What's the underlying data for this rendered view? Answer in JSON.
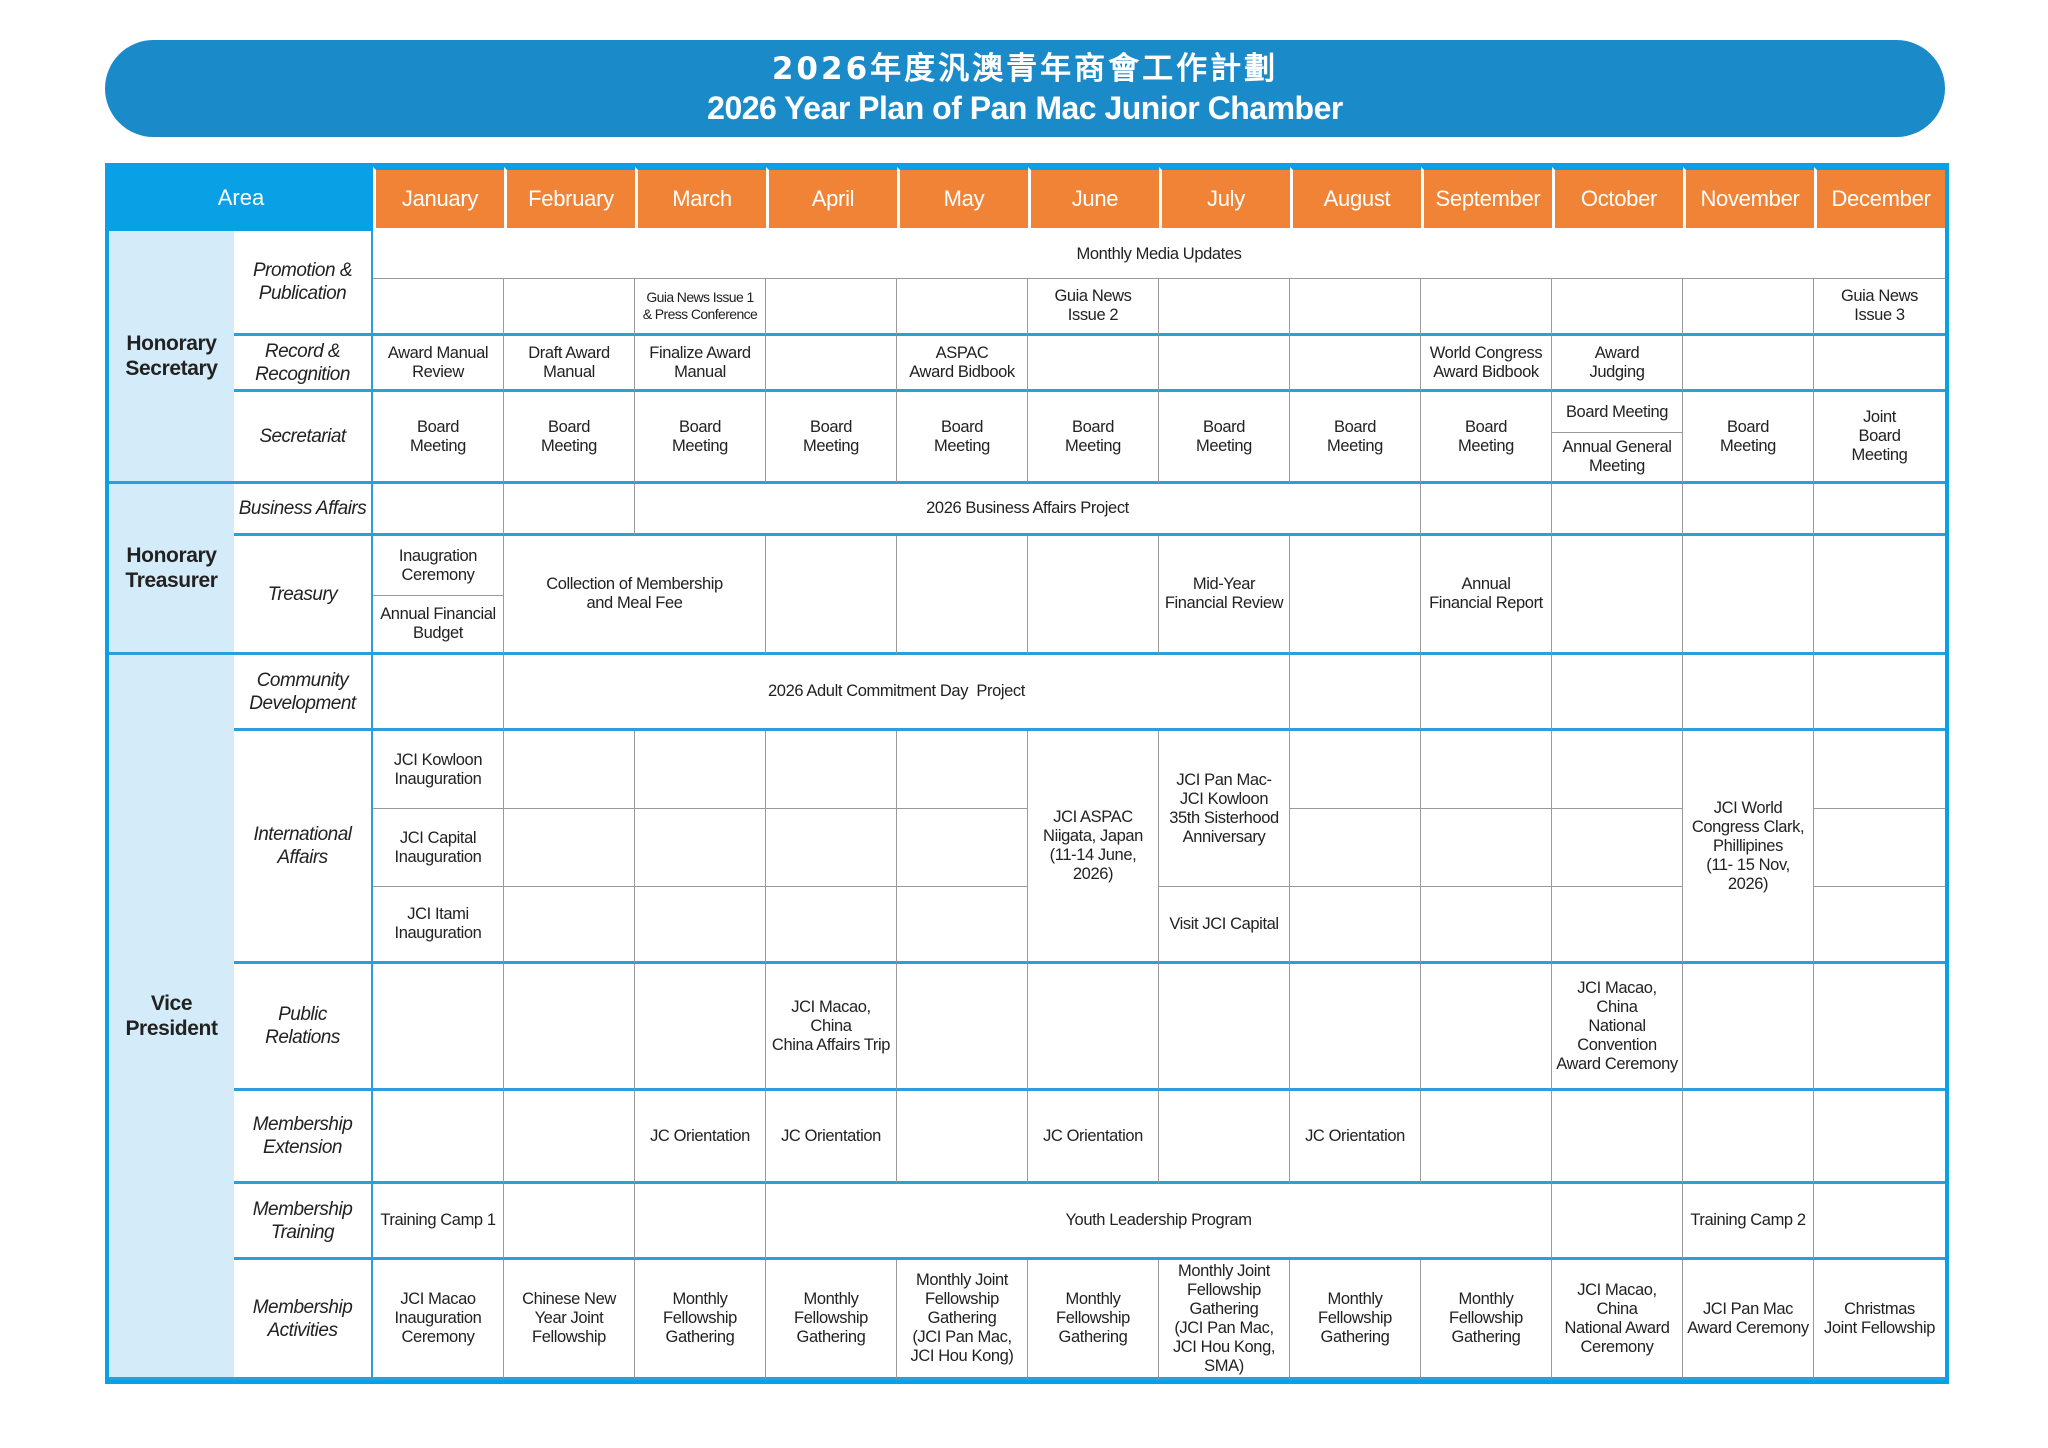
{
  "title": {
    "chinese": "2026年度汎澳青年商會工作計劃",
    "english": "2026 Year Plan of Pan Mac Junior Chamber"
  },
  "colors": {
    "banner": "#1a8ac8",
    "header_blue": "#0aa0e6",
    "month_orange": "#f08336",
    "area_bg": "#d4ecf9"
  },
  "header": {
    "area_label": "Area",
    "months": [
      "January",
      "February",
      "March",
      "April",
      "May",
      "June",
      "July",
      "August",
      "September",
      "October",
      "November",
      "December"
    ]
  },
  "sections": [
    {
      "name": "Honorary\nSecretary",
      "areas": [
        {
          "name": "Promotion &\nPublication",
          "events": [
            {
              "text": "Monthly Media Updates",
              "from": "January",
              "to": "December"
            },
            {
              "text": "Guia News Issue 1\n& Press Conference",
              "from": "March"
            },
            {
              "text": "Guia News\nIssue 2",
              "from": "June"
            },
            {
              "text": "Guia News\nIssue 3",
              "from": "December"
            }
          ]
        },
        {
          "name": "Record &\nRecognition",
          "events": [
            {
              "text": "Award Manual\nReview",
              "from": "January"
            },
            {
              "text": "Draft Award\nManual",
              "from": "February"
            },
            {
              "text": "Finalize Award\nManual",
              "from": "March"
            },
            {
              "text": "ASPAC\nAward Bidbook",
              "from": "May"
            },
            {
              "text": "World Congress\nAward Bidbook",
              "from": "September"
            },
            {
              "text": "Award\nJudging",
              "from": "October"
            }
          ]
        },
        {
          "name": "Secretariat",
          "events": [
            {
              "text": "Board\nMeeting",
              "from": "January"
            },
            {
              "text": "Board\nMeeting",
              "from": "February"
            },
            {
              "text": "Board\nMeeting",
              "from": "March"
            },
            {
              "text": "Board\nMeeting",
              "from": "April"
            },
            {
              "text": "Board\nMeeting",
              "from": "May"
            },
            {
              "text": "Board\nMeeting",
              "from": "June"
            },
            {
              "text": "Board\nMeeting",
              "from": "July"
            },
            {
              "text": "Board\nMeeting",
              "from": "August"
            },
            {
              "text": "Board\nMeeting",
              "from": "September"
            },
            {
              "text": "Board Meeting",
              "from": "October"
            },
            {
              "text": "Annual General\nMeeting",
              "from": "October"
            },
            {
              "text": "Board\nMeeting",
              "from": "November"
            },
            {
              "text": "Joint\nBoard\nMeeting",
              "from": "December"
            }
          ]
        }
      ]
    },
    {
      "name": "Honorary\nTreasurer",
      "areas": [
        {
          "name": "Business Affairs",
          "events": [
            {
              "text": "2026 Business Affairs Project",
              "from": "March",
              "to": "August"
            }
          ]
        },
        {
          "name": "Treasury",
          "events": [
            {
              "text": "Inaugration\nCeremony",
              "from": "January"
            },
            {
              "text": "Annual Financial\nBudget",
              "from": "January"
            },
            {
              "text": "Collection of Membership\nand Meal Fee",
              "from": "February",
              "to": "March"
            },
            {
              "text": "Mid-Year\nFinancial Review",
              "from": "July"
            },
            {
              "text": "Annual\nFinancial Report",
              "from": "September"
            }
          ]
        }
      ]
    },
    {
      "name": "Vice\nPresident",
      "areas": [
        {
          "name": "Community\nDevelopment",
          "events": [
            {
              "text": "2026 Adult Commitment Day  Project",
              "from": "February",
              "to": "July"
            }
          ]
        },
        {
          "name": "International\nAffairs",
          "events": [
            {
              "text": "JCI Kowloon\nInauguration",
              "from": "January"
            },
            {
              "text": "JCI Capital\nInauguration",
              "from": "January"
            },
            {
              "text": "JCI Itami\nInauguration",
              "from": "January"
            },
            {
              "text": "JCI ASPAC\nNiigata, Japan\n(11-14 June,\n2026)",
              "from": "June"
            },
            {
              "text": "JCI Pan Mac-\nJCI Kowloon\n35th Sisterhood\nAnniversary",
              "from": "July"
            },
            {
              "text": "Visit JCI Capital",
              "from": "July"
            },
            {
              "text": "JCI World\nCongress Clark,\nPhillipines\n(11- 15 Nov,\n2026)",
              "from": "November"
            }
          ]
        },
        {
          "name": "Public\nRelations",
          "events": [
            {
              "text": "JCI Macao,\nChina\nChina Affairs Trip",
              "from": "April"
            },
            {
              "text": "JCI Macao,\nChina\nNational\nConvention\nAward Ceremony",
              "from": "October"
            }
          ]
        },
        {
          "name": "Membership\nExtension",
          "events": [
            {
              "text": "JC Orientation",
              "from": "March"
            },
            {
              "text": "JC Orientation",
              "from": "April"
            },
            {
              "text": "JC Orientation",
              "from": "June"
            },
            {
              "text": "JC Orientation",
              "from": "August"
            }
          ]
        },
        {
          "name": "Membership\nTraining",
          "events": [
            {
              "text": "Training Camp 1",
              "from": "January"
            },
            {
              "text": "Youth Leadership Program",
              "from": "April",
              "to": "September"
            },
            {
              "text": "Training Camp 2",
              "from": "November"
            }
          ]
        },
        {
          "name": "Membership\nActivities",
          "events": [
            {
              "text": "JCI Macao\nInauguration\nCeremony",
              "from": "January"
            },
            {
              "text": "Chinese New\nYear Joint\nFellowship",
              "from": "February"
            },
            {
              "text": "Monthly\nFellowship\nGathering",
              "from": "March"
            },
            {
              "text": "Monthly\nFellowship\nGathering",
              "from": "April"
            },
            {
              "text": "Monthly Joint\nFellowship\nGathering\n(JCI Pan Mac,\nJCI Hou Kong)",
              "from": "May"
            },
            {
              "text": "Monthly\nFellowship\nGathering",
              "from": "June"
            },
            {
              "text": "Monthly Joint\nFellowship\nGathering\n(JCI Pan Mac,\nJCI Hou Kong,\nSMA)",
              "from": "July"
            },
            {
              "text": "Monthly\nFellowship\nGathering",
              "from": "August"
            },
            {
              "text": "Monthly\nFellowship\nGathering",
              "from": "September"
            },
            {
              "text": "JCI Macao,\nChina\nNational Award\nCeremony",
              "from": "October"
            },
            {
              "text": "JCI Pan Mac\nAward Ceremony",
              "from": "November"
            },
            {
              "text": "Christmas\nJoint Fellowship",
              "from": "December"
            }
          ]
        }
      ]
    }
  ]
}
